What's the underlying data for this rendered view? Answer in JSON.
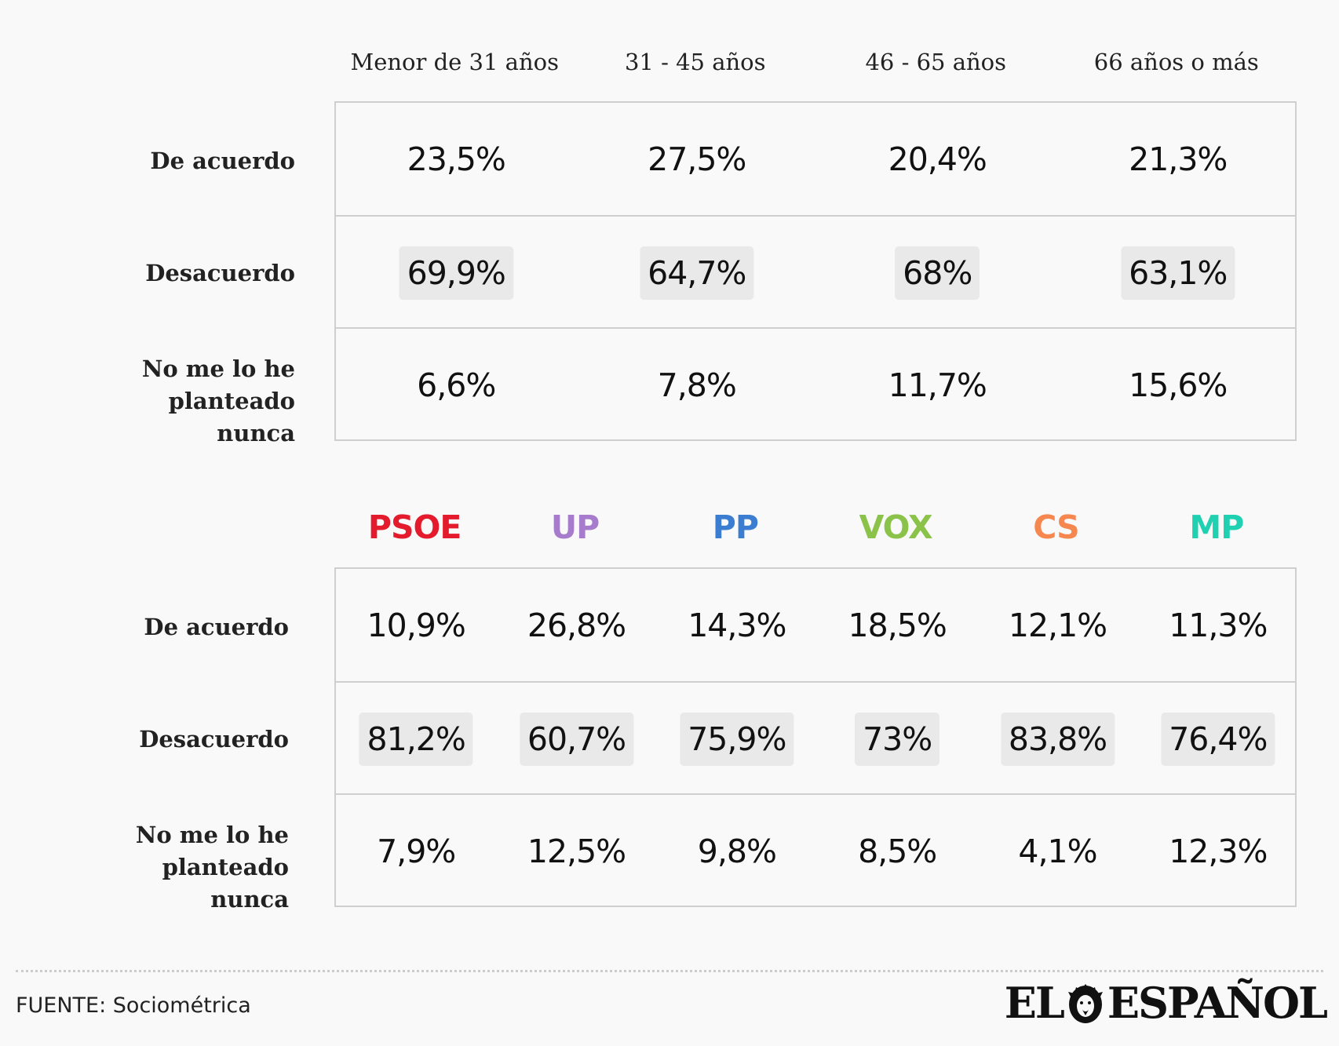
{
  "chart_data": [
    {
      "type": "table",
      "columns": [
        "Menor de 31 años",
        "31 - 45 años",
        "46 - 65 años",
        "66 años o más"
      ],
      "rows": [
        {
          "label": "De acuerdo",
          "values": [
            "23,5%",
            "27,5%",
            "20,4%",
            "21,3%"
          ],
          "highlight": false
        },
        {
          "label": "Desacuerdo",
          "values": [
            "69,9%",
            "64,7%",
            "68%",
            "63,1%"
          ],
          "highlight": true
        },
        {
          "label": "No me lo he planteado nunca",
          "values": [
            "6,6%",
            "7,8%",
            "11,7%",
            "15,6%"
          ],
          "highlight": false
        }
      ]
    },
    {
      "type": "table",
      "columns": [
        "PSOE",
        "UP",
        "PP",
        "VOX",
        "CS",
        "MP"
      ],
      "column_colors": [
        "#e41b2c",
        "#a77ccc",
        "#3b7dd0",
        "#8bc34a",
        "#f5874f",
        "#1fd1b0"
      ],
      "rows": [
        {
          "label": "De acuerdo",
          "values": [
            "10,9%",
            "26,8%",
            "14,3%",
            "18,5%",
            "12,1%",
            "11,3%"
          ],
          "highlight": false
        },
        {
          "label": "Desacuerdo",
          "values": [
            "81,2%",
            "60,7%",
            "75,9%",
            "73%",
            "83,8%",
            "76,4%"
          ],
          "highlight": true
        },
        {
          "label": "No me lo he planteado nunca",
          "values": [
            "7,9%",
            "12,5%",
            "9,8%",
            "8,5%",
            "4,1%",
            "12,3%"
          ],
          "highlight": false
        }
      ]
    }
  ],
  "footer": {
    "source": "FUENTE: Sociométrica",
    "logo_left": "EL",
    "logo_right": "ESPAÑOL",
    "logo_icon": "lion-icon"
  }
}
